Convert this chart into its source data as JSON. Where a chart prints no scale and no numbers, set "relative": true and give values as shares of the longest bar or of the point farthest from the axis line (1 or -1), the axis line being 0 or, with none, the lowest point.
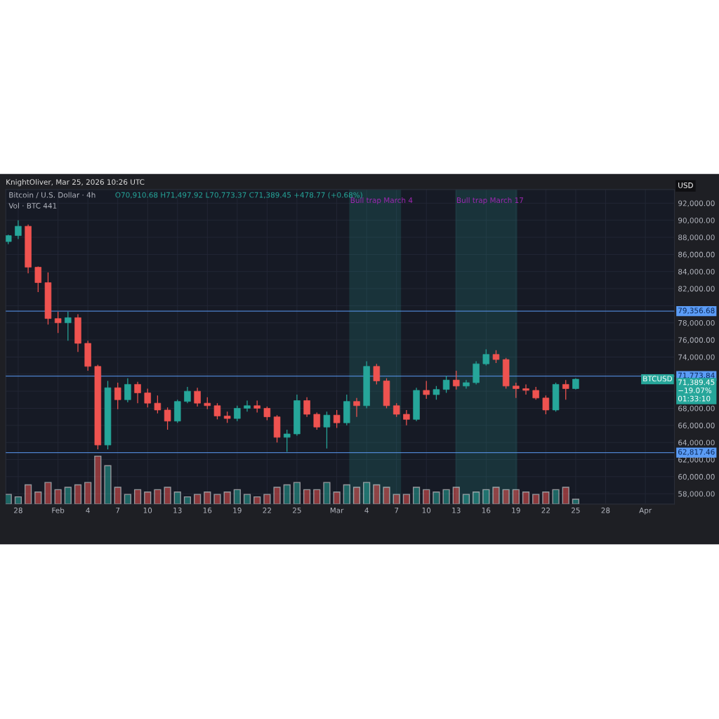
{
  "chart_data": [
    {
      "type": "candlestick",
      "title": "Bitcoin / U.S. Dollar · 4h",
      "subtitle": "O70,910.68 H71,497.92 L70,773.37 C71,389.45 +478.77 (+0.68%)",
      "ylabel": "USD",
      "annotations": [
        "KnightOliver, Mar 25, 2026 10:26 UTC",
        "Vol · BTC 441",
        {
          "text": "BTCUSD",
          "y": 71389.45
        },
        "71,389.45\n−19.07%\n01:33:10"
      ],
      "x": [
        "2026-01-27",
        "2026-01-28",
        "2026-01-29",
        "2026-01-30",
        "2026-01-31",
        "2026-02-01",
        "2026-02-02",
        "2026-02-03",
        "2026-02-04",
        "2026-02-05",
        "2026-02-06",
        "2026-02-07",
        "2026-02-08",
        "2026-02-09",
        "2026-02-10",
        "2026-02-11",
        "2026-02-12",
        "2026-02-13",
        "2026-02-14",
        "2026-02-15",
        "2026-02-16",
        "2026-02-17",
        "2026-02-18",
        "2026-02-19",
        "2026-02-20",
        "2026-02-21",
        "2026-02-22",
        "2026-02-23",
        "2026-02-24",
        "2026-02-25",
        "2026-02-26",
        "2026-02-27",
        "2026-02-28",
        "2026-03-01",
        "2026-03-02",
        "2026-03-03",
        "2026-03-04",
        "2026-03-05",
        "2026-03-06",
        "2026-03-07",
        "2026-03-08",
        "2026-03-09",
        "2026-03-10",
        "2026-03-11",
        "2026-03-12",
        "2026-03-13",
        "2026-03-14",
        "2026-03-15",
        "2026-03-16",
        "2026-03-17",
        "2026-03-18",
        "2026-03-19",
        "2026-03-20",
        "2026-03-21",
        "2026-03-22",
        "2026-03-23",
        "2026-03-24",
        "2026-03-25"
      ],
      "ohlc": [
        [
          87500,
          88300,
          87200,
          88200
        ],
        [
          88200,
          90000,
          87800,
          89300
        ],
        [
          89300,
          89500,
          83800,
          84500
        ],
        [
          84500,
          84600,
          81600,
          82700
        ],
        [
          82700,
          83900,
          77800,
          78500
        ],
        [
          78500,
          79300,
          76800,
          78000
        ],
        [
          78000,
          79300,
          75900,
          78600
        ],
        [
          78600,
          79000,
          74600,
          75600
        ],
        [
          75600,
          75900,
          72400,
          72900
        ],
        [
          72900,
          73100,
          63200,
          63700
        ],
        [
          63700,
          71200,
          63200,
          70400
        ],
        [
          70400,
          71000,
          67900,
          69000
        ],
        [
          69000,
          71500,
          68700,
          70800
        ],
        [
          70800,
          71100,
          68600,
          69800
        ],
        [
          69800,
          70300,
          68100,
          68600
        ],
        [
          68600,
          69500,
          67400,
          67800
        ],
        [
          67800,
          68100,
          65500,
          66500
        ],
        [
          66500,
          69000,
          66300,
          68800
        ],
        [
          68800,
          70500,
          68600,
          70000
        ],
        [
          70000,
          70400,
          68200,
          68600
        ],
        [
          68600,
          69300,
          67900,
          68300
        ],
        [
          68300,
          68600,
          66700,
          67100
        ],
        [
          67100,
          67600,
          66300,
          66800
        ],
        [
          66800,
          68300,
          66500,
          68000
        ],
        [
          68000,
          68900,
          67600,
          68300
        ],
        [
          68300,
          68900,
          67500,
          68000
        ],
        [
          68000,
          68200,
          66600,
          67000
        ],
        [
          67000,
          67200,
          64000,
          64600
        ],
        [
          64600,
          65500,
          62900,
          65000
        ],
        [
          65000,
          69600,
          64800,
          68900
        ],
        [
          68900,
          69300,
          67000,
          67300
        ],
        [
          67300,
          67500,
          65500,
          65800
        ],
        [
          65800,
          67600,
          63300,
          67200
        ],
        [
          67200,
          67800,
          65700,
          66300
        ],
        [
          66300,
          69600,
          66000,
          68800
        ],
        [
          68800,
          69200,
          67000,
          68300
        ],
        [
          68300,
          73500,
          68000,
          72900
        ],
        [
          72900,
          73200,
          70800,
          71200
        ],
        [
          71200,
          71500,
          68000,
          68300
        ],
        [
          68300,
          68600,
          67000,
          67300
        ],
        [
          67300,
          67800,
          66000,
          66700
        ],
        [
          66700,
          70400,
          66500,
          70100
        ],
        [
          70100,
          71200,
          69100,
          69600
        ],
        [
          69600,
          70600,
          69000,
          70200
        ],
        [
          70200,
          71800,
          69800,
          71300
        ],
        [
          71300,
          72400,
          70200,
          70600
        ],
        [
          70600,
          71300,
          70300,
          71000
        ],
        [
          71000,
          73500,
          70800,
          73200
        ],
        [
          73200,
          74900,
          73000,
          74300
        ],
        [
          74300,
          74800,
          73300,
          73700
        ],
        [
          73700,
          73900,
          70300,
          70600
        ],
        [
          70600,
          71000,
          69200,
          70300
        ],
        [
          70300,
          70800,
          69600,
          70100
        ],
        [
          70100,
          70500,
          69000,
          69200
        ],
        [
          69200,
          69500,
          67300,
          67800
        ],
        [
          67800,
          71000,
          67600,
          70800
        ],
        [
          70800,
          71300,
          69000,
          70300
        ],
        [
          70300,
          71500,
          70200,
          71400
        ]
      ],
      "colors": [
        "#26a69a",
        "#26a69a",
        "#ef5350",
        "#ef5350",
        "#ef5350",
        "#ef5350",
        "#26a69a",
        "#ef5350",
        "#ef5350",
        "#ef5350",
        "#26a69a",
        "#ef5350",
        "#26a69a",
        "#ef5350",
        "#ef5350",
        "#ef5350",
        "#ef5350",
        "#26a69a",
        "#26a69a",
        "#ef5350",
        "#ef5350",
        "#ef5350",
        "#ef5350",
        "#26a69a",
        "#26a69a",
        "#ef5350",
        "#ef5350",
        "#ef5350",
        "#26a69a",
        "#26a69a",
        "#ef5350",
        "#ef5350",
        "#26a69a",
        "#ef5350",
        "#26a69a",
        "#ef5350",
        "#26a69a",
        "#ef5350",
        "#ef5350",
        "#ef5350",
        "#ef5350",
        "#26a69a",
        "#ef5350",
        "#26a69a",
        "#26a69a",
        "#ef5350",
        "#26a69a",
        "#26a69a",
        "#26a69a",
        "#ef5350",
        "#ef5350",
        "#ef5350",
        "#ef5350",
        "#ef5350",
        "#ef5350",
        "#26a69a",
        "#ef5350",
        "#26a69a"
      ],
      "xlim": [
        "2026-01-26T18:00",
        "2026-04-03T22:00"
      ],
      "xticks": [
        {
          "value": "2026-01-28",
          "label": "28"
        },
        {
          "value": "2026-02-01",
          "label": "Feb"
        },
        {
          "value": "2026-02-04",
          "label": "4"
        },
        {
          "value": "2026-02-07",
          "label": "7"
        },
        {
          "value": "2026-02-10",
          "label": "10"
        },
        {
          "value": "2026-02-13",
          "label": "13"
        },
        {
          "value": "2026-02-16",
          "label": "16"
        },
        {
          "value": "2026-02-19",
          "label": "19"
        },
        {
          "value": "2026-02-22",
          "label": "22"
        },
        {
          "value": "2026-02-25",
          "label": "25"
        },
        {
          "value": "2026-03-01",
          "label": "Mar"
        },
        {
          "value": "2026-03-04",
          "label": "4"
        },
        {
          "value": "2026-03-07",
          "label": "7"
        },
        {
          "value": "2026-03-10",
          "label": "10"
        },
        {
          "value": "2026-03-13",
          "label": "13"
        },
        {
          "value": "2026-03-16",
          "label": "16"
        },
        {
          "value": "2026-03-19",
          "label": "19"
        },
        {
          "value": "2026-03-22",
          "label": "22"
        },
        {
          "value": "2026-03-25",
          "label": "25"
        },
        {
          "value": "2026-03-28",
          "label": "28"
        },
        {
          "value": "2026-04-01",
          "label": "Apr"
        }
      ],
      "ylim": [
        56800,
        93600
      ],
      "yticks": [
        {
          "value": 58000,
          "label": "58,000.00"
        },
        {
          "value": 60000,
          "label": "60,000.00"
        },
        {
          "value": 62000,
          "label": "62,000.00"
        },
        {
          "value": 64000,
          "label": "64,000.00"
        },
        {
          "value": 66000,
          "label": "66,000.00"
        },
        {
          "value": 68000,
          "label": "68,000.00"
        },
        {
          "value": 70000,
          "label": null
        },
        {
          "value": 72000,
          "label": null
        },
        {
          "value": 74000,
          "label": "74,000.00"
        },
        {
          "value": 76000,
          "label": "76,000.00"
        },
        {
          "value": 78000,
          "label": "78,000.00"
        },
        {
          "value": 80000,
          "label": null
        },
        {
          "value": 82000,
          "label": "82,000.00"
        },
        {
          "value": 84000,
          "label": "84,000.00"
        },
        {
          "value": 86000,
          "label": "86,000.00"
        },
        {
          "value": 88000,
          "label": "88,000.00"
        },
        {
          "value": 90000,
          "label": "90,000.00"
        },
        {
          "value": 92000,
          "label": "92,000.00"
        }
      ],
      "ref_lines": [
        {
          "axis": "y",
          "value": 79356.68,
          "label": "79,356.68",
          "color": "#5b9cf6"
        },
        {
          "axis": "y",
          "value": 71773.84,
          "label": "71,773.84",
          "color": "#5b9cf6"
        },
        {
          "axis": "y",
          "value": 62817.46,
          "label": "62,817.46",
          "color": "#5b9cf6"
        }
      ],
      "bands": [
        {
          "axis": "x",
          "from": "2026-03-02T06:00",
          "to": "2026-03-07T11:00",
          "label": "Bull trap March 4",
          "color": "#26a69a"
        },
        {
          "axis": "x",
          "from": "2026-03-12T22:00",
          "to": "2026-03-19T03:00",
          "label": "Bull trap March 17",
          "color": "#26a69a"
        }
      ],
      "grid": true
    },
    {
      "type": "bar",
      "relative": true,
      "tick_labels": false,
      "x": [
        "2026-01-27",
        "2026-01-28",
        "2026-01-29",
        "2026-01-30",
        "2026-01-31",
        "2026-02-01",
        "2026-02-02",
        "2026-02-03",
        "2026-02-04",
        "2026-02-05",
        "2026-02-06",
        "2026-02-07",
        "2026-02-08",
        "2026-02-09",
        "2026-02-10",
        "2026-02-11",
        "2026-02-12",
        "2026-02-13",
        "2026-02-14",
        "2026-02-15",
        "2026-02-16",
        "2026-02-17",
        "2026-02-18",
        "2026-02-19",
        "2026-02-20",
        "2026-02-21",
        "2026-02-22",
        "2026-02-23",
        "2026-02-24",
        "2026-02-25",
        "2026-02-26",
        "2026-02-27",
        "2026-02-28",
        "2026-03-01",
        "2026-03-02",
        "2026-03-03",
        "2026-03-04",
        "2026-03-05",
        "2026-03-06",
        "2026-03-07",
        "2026-03-08",
        "2026-03-09",
        "2026-03-10",
        "2026-03-11",
        "2026-03-12",
        "2026-03-13",
        "2026-03-14",
        "2026-03-15",
        "2026-03-16",
        "2026-03-17",
        "2026-03-18",
        "2026-03-19",
        "2026-03-20",
        "2026-03-21",
        "2026-03-22",
        "2026-03-23",
        "2026-03-24",
        "2026-03-25"
      ],
      "values": [
        0.2,
        0.15,
        0.4,
        0.25,
        0.45,
        0.3,
        0.35,
        0.4,
        0.45,
        1,
        0.8,
        0.35,
        0.2,
        0.3,
        0.25,
        0.3,
        0.35,
        0.25,
        0.15,
        0.2,
        0.25,
        0.2,
        0.25,
        0.3,
        0.2,
        0.15,
        0.2,
        0.35,
        0.4,
        0.45,
        0.3,
        0.3,
        0.45,
        0.25,
        0.4,
        0.35,
        0.45,
        0.4,
        0.35,
        0.2,
        0.2,
        0.35,
        0.3,
        0.25,
        0.3,
        0.35,
        0.2,
        0.25,
        0.3,
        0.35,
        0.3,
        0.3,
        0.25,
        0.2,
        0.25,
        0.3,
        0.35,
        0.1
      ],
      "colors": [
        "#26a69a",
        "#26a69a",
        "#ef5350",
        "#ef5350",
        "#ef5350",
        "#ef5350",
        "#26a69a",
        "#ef5350",
        "#ef5350",
        "#ef5350",
        "#26a69a",
        "#ef5350",
        "#26a69a",
        "#ef5350",
        "#ef5350",
        "#ef5350",
        "#ef5350",
        "#26a69a",
        "#26a69a",
        "#ef5350",
        "#ef5350",
        "#ef5350",
        "#ef5350",
        "#26a69a",
        "#26a69a",
        "#ef5350",
        "#ef5350",
        "#ef5350",
        "#26a69a",
        "#26a69a",
        "#ef5350",
        "#ef5350",
        "#26a69a",
        "#ef5350",
        "#26a69a",
        "#ef5350",
        "#26a69a",
        "#ef5350",
        "#ef5350",
        "#ef5350",
        "#ef5350",
        "#26a69a",
        "#ef5350",
        "#26a69a",
        "#26a69a",
        "#ef5350",
        "#26a69a",
        "#26a69a",
        "#26a69a",
        "#ef5350",
        "#ef5350",
        "#ef5350",
        "#ef5350",
        "#ef5350",
        "#ef5350",
        "#26a69a",
        "#ef5350",
        "#26a69a"
      ],
      "xlim": [
        "2026-01-26T18:00",
        "2026-04-03T22:00"
      ]
    }
  ]
}
